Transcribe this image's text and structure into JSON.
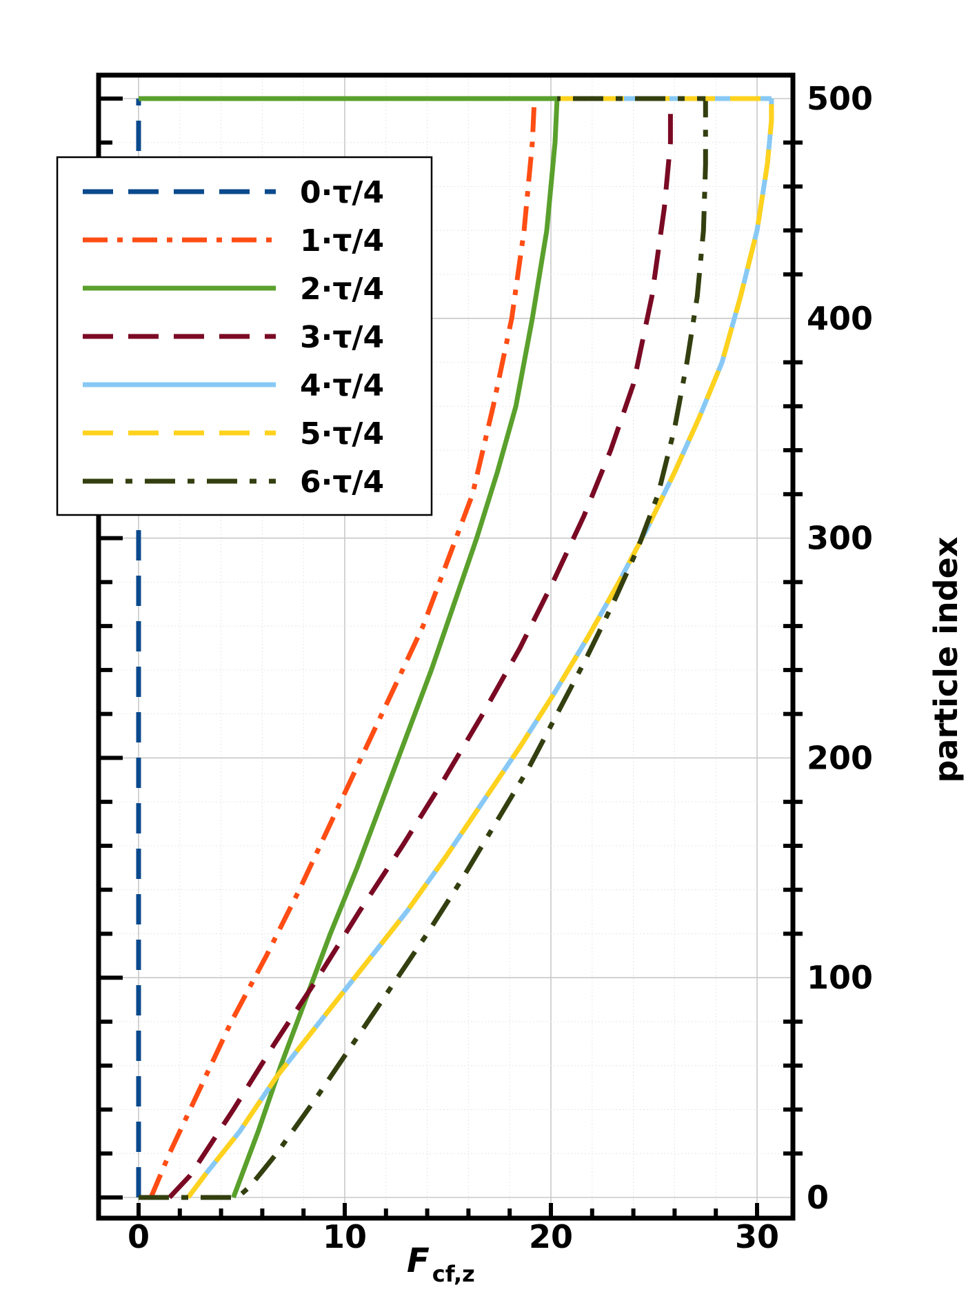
{
  "chart_data": {
    "type": "line",
    "xlabel_main": "F",
    "xlabel_sub": "cf,z",
    "ylabel": "particle index",
    "xlim": [
      -2,
      32
    ],
    "ylim": [
      -10,
      510
    ],
    "x_ticks": [
      0,
      10,
      20,
      30
    ],
    "x_tick_labels": [
      "0",
      "10",
      "20",
      "30"
    ],
    "y_ticks": [
      0,
      100,
      200,
      300,
      400,
      500
    ],
    "y_tick_labels": [
      "0",
      "100",
      "200",
      "300",
      "400",
      "500"
    ],
    "y_axis_side": "right",
    "grid": true,
    "legend_position": "upper-left",
    "series": [
      {
        "name": "0·τ/4",
        "color": "#0a4a8c",
        "dash": "dashed",
        "points": [
          [
            0,
            0
          ],
          [
            0,
            500
          ]
        ]
      },
      {
        "name": "1·τ/4",
        "color": "#ff4d14",
        "dash": "dashdot",
        "points": [
          [
            0.6,
            0
          ],
          [
            1.5,
            20
          ],
          [
            3.0,
            50
          ],
          [
            4.5,
            80
          ],
          [
            6.2,
            110
          ],
          [
            7.8,
            140
          ],
          [
            9.3,
            170
          ],
          [
            10.8,
            200
          ],
          [
            12.3,
            230
          ],
          [
            13.8,
            260
          ],
          [
            15.0,
            290
          ],
          [
            16.2,
            320
          ],
          [
            17.2,
            360
          ],
          [
            18.1,
            400
          ],
          [
            18.7,
            440
          ],
          [
            19.1,
            480
          ],
          [
            19.2,
            500
          ]
        ]
      },
      {
        "name": "2·τ/4",
        "color": "#5aa02c",
        "dash": "solid",
        "points": [
          [
            4.6,
            0
          ],
          [
            5.0,
            10
          ],
          [
            5.8,
            30
          ],
          [
            6.9,
            60
          ],
          [
            8.1,
            90
          ],
          [
            9.3,
            120
          ],
          [
            10.6,
            150
          ],
          [
            11.8,
            180
          ],
          [
            13.0,
            210
          ],
          [
            14.2,
            240
          ],
          [
            15.3,
            270
          ],
          [
            16.4,
            300
          ],
          [
            17.4,
            330
          ],
          [
            18.3,
            360
          ],
          [
            19.1,
            400
          ],
          [
            19.8,
            440
          ],
          [
            20.2,
            480
          ],
          [
            20.3,
            500
          ]
        ]
      },
      {
        "name": "3·τ/4",
        "color": "#7a0a24",
        "dash": "dashed",
        "points": [
          [
            1.5,
            0
          ],
          [
            2.5,
            10
          ],
          [
            4.6,
            40
          ],
          [
            6.6,
            70
          ],
          [
            8.7,
            100
          ],
          [
            10.7,
            130
          ],
          [
            12.8,
            160
          ],
          [
            14.8,
            190
          ],
          [
            16.7,
            220
          ],
          [
            18.5,
            250
          ],
          [
            20.1,
            280
          ],
          [
            21.6,
            310
          ],
          [
            22.9,
            340
          ],
          [
            24.0,
            370
          ],
          [
            24.9,
            410
          ],
          [
            25.5,
            450
          ],
          [
            25.8,
            480
          ],
          [
            25.8,
            500
          ]
        ]
      },
      {
        "name": "4·τ/4",
        "color": "#87c8f5",
        "dash": "solid",
        "points": [
          [
            2.4,
            0
          ],
          [
            3.2,
            10
          ],
          [
            4.9,
            30
          ],
          [
            6.7,
            55
          ],
          [
            8.8,
            80
          ],
          [
            10.9,
            105
          ],
          [
            13.0,
            130
          ],
          [
            14.9,
            155
          ],
          [
            16.7,
            180
          ],
          [
            18.5,
            205
          ],
          [
            20.2,
            230
          ],
          [
            21.8,
            255
          ],
          [
            23.3,
            280
          ],
          [
            24.7,
            305
          ],
          [
            26.0,
            330
          ],
          [
            27.2,
            355
          ],
          [
            28.3,
            380
          ],
          [
            29.2,
            410
          ],
          [
            30.0,
            440
          ],
          [
            30.5,
            470
          ],
          [
            30.7,
            490
          ],
          [
            30.7,
            500
          ]
        ]
      },
      {
        "name": "5·τ/4",
        "color": "#ffd21e",
        "dash": "dashed",
        "points": [
          [
            2.4,
            0
          ],
          [
            3.2,
            10
          ],
          [
            4.9,
            30
          ],
          [
            6.7,
            55
          ],
          [
            8.8,
            80
          ],
          [
            10.9,
            105
          ],
          [
            13.0,
            130
          ],
          [
            14.9,
            155
          ],
          [
            16.7,
            180
          ],
          [
            18.5,
            205
          ],
          [
            20.2,
            230
          ],
          [
            21.8,
            255
          ],
          [
            23.3,
            280
          ],
          [
            24.7,
            305
          ],
          [
            26.0,
            330
          ],
          [
            27.2,
            355
          ],
          [
            28.3,
            380
          ],
          [
            29.2,
            410
          ],
          [
            30.0,
            440
          ],
          [
            30.5,
            470
          ],
          [
            30.7,
            490
          ],
          [
            30.7,
            500
          ]
        ]
      },
      {
        "name": "6·τ/4",
        "color": "#333f0f",
        "dash": "dashdotlong",
        "points": [
          [
            0,
            0
          ],
          [
            4.8,
            0
          ],
          [
            5.4,
            5
          ],
          [
            6.7,
            20
          ],
          [
            8.6,
            45
          ],
          [
            10.4,
            70
          ],
          [
            12.2,
            95
          ],
          [
            14.0,
            120
          ],
          [
            15.7,
            145
          ],
          [
            17.3,
            170
          ],
          [
            18.9,
            195
          ],
          [
            20.3,
            220
          ],
          [
            21.7,
            245
          ],
          [
            23.0,
            270
          ],
          [
            24.2,
            295
          ],
          [
            25.2,
            320
          ],
          [
            26.0,
            350
          ],
          [
            26.6,
            380
          ],
          [
            27.1,
            410
          ],
          [
            27.4,
            440
          ],
          [
            27.5,
            470
          ],
          [
            27.5,
            500
          ]
        ]
      }
    ],
    "top_segment_note": "",
    "legend_labels": [
      "0·τ/4",
      "1·τ/4",
      "2·τ/4",
      "3·τ/4",
      "4·τ/4",
      "5·τ/4",
      "6·τ/4"
    ]
  }
}
